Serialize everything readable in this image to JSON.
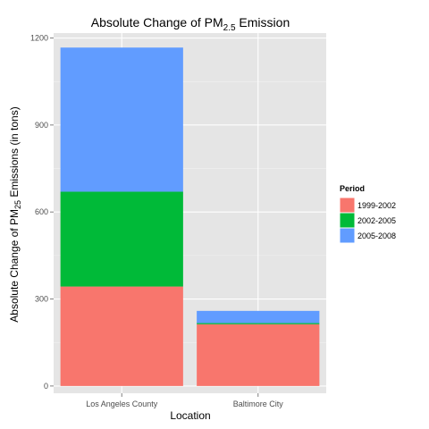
{
  "chart_data": {
    "type": "bar",
    "stacked": true,
    "title": {
      "main": "Absolute Change of PM",
      "sub": "2.5",
      "tail": " Emission"
    },
    "xlabel": "Location",
    "ylabel": {
      "main": "Absolute Change of PM",
      "sub": "25",
      "tail": " Emissions (in tons)"
    },
    "categories": [
      "Los Angeles County",
      "Baltimore City"
    ],
    "series": [
      {
        "name": "1999-2002",
        "color": "#F8766D",
        "values": [
          343,
          213
        ]
      },
      {
        "name": "2002-2005",
        "color": "#00BA38",
        "values": [
          327,
          4
        ]
      },
      {
        "name": "2005-2008",
        "color": "#619CFF",
        "values": [
          497,
          42
        ]
      }
    ],
    "ylim": [
      -25,
      1217
    ],
    "yticks": [
      0,
      300,
      600,
      900,
      1200
    ],
    "grid": true,
    "legend": {
      "title": "Period",
      "position": "right"
    }
  }
}
